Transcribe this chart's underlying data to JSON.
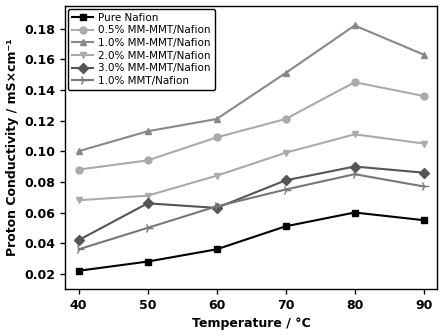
{
  "x": [
    40,
    50,
    60,
    70,
    80,
    90
  ],
  "series": [
    {
      "label": "Pure Nafion",
      "values": [
        0.022,
        0.028,
        0.036,
        0.051,
        0.06,
        0.055
      ],
      "color": "#000000",
      "marker": "s",
      "linewidth": 1.5,
      "markersize": 5,
      "markerfacecolor": "#000000"
    },
    {
      "label": "0.5% MM-MMT/Nafion",
      "values": [
        0.088,
        0.094,
        0.109,
        0.121,
        0.145,
        0.136
      ],
      "color": "#aaaaaa",
      "marker": "o",
      "linewidth": 1.5,
      "markersize": 5,
      "markerfacecolor": "#aaaaaa"
    },
    {
      "label": "1.0% MM-MMT/Nafion",
      "values": [
        0.1,
        0.113,
        0.121,
        0.151,
        0.182,
        0.163
      ],
      "color": "#888888",
      "marker": "^",
      "linewidth": 1.5,
      "markersize": 5,
      "markerfacecolor": "#888888"
    },
    {
      "label": "2.0% MM-MMT/Nafion",
      "values": [
        0.068,
        0.071,
        0.084,
        0.099,
        0.111,
        0.105
      ],
      "color": "#aaaaaa",
      "marker": "v",
      "linewidth": 1.5,
      "markersize": 5,
      "markerfacecolor": "#aaaaaa"
    },
    {
      "label": "3.0% MM-MMT/Nafion",
      "values": [
        0.042,
        0.066,
        0.063,
        0.081,
        0.09,
        0.086
      ],
      "color": "#555555",
      "marker": "D",
      "linewidth": 1.5,
      "markersize": 5,
      "markerfacecolor": "#555555"
    },
    {
      "label": "1.0% MMT/Nafion",
      "values": [
        0.036,
        0.05,
        0.064,
        0.075,
        0.085,
        0.077
      ],
      "color": "#777777",
      "marker": "4",
      "linewidth": 1.5,
      "markersize": 7,
      "markerfacecolor": "#777777"
    }
  ],
  "xlabel": "Temperature / °C",
  "ylabel": "Proton Conductivity / mS×cm⁻¹",
  "ylim": [
    0.01,
    0.195
  ],
  "xlim": [
    38,
    92
  ],
  "xticks": [
    40,
    50,
    60,
    70,
    80,
    90
  ],
  "yticks": [
    0.02,
    0.04,
    0.06,
    0.08,
    0.1,
    0.12,
    0.14,
    0.16,
    0.18
  ],
  "background_color": "#ffffff",
  "legend_fontsize": 7.5,
  "axis_label_fontsize": 9,
  "tick_fontsize": 9
}
